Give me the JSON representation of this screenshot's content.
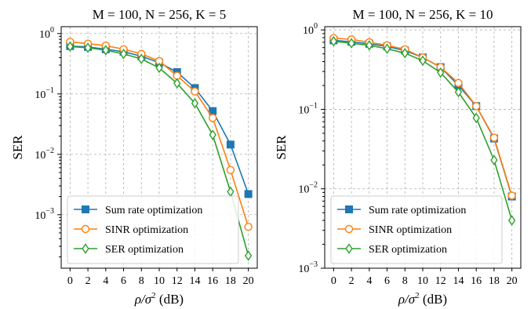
{
  "colors": {
    "sum_rate": "#1f77b4",
    "sinr": "#ff7f0e",
    "ser": "#2ca02c"
  },
  "chart_data": [
    {
      "type": "line",
      "title": "M = 100, N = 256, K = 5",
      "ylabel": "SER",
      "xlabel_main": "ρ/σ",
      "xlabel_sup": "2",
      "xlabel_unit": " (dB)",
      "x": [
        0,
        2,
        4,
        6,
        8,
        10,
        12,
        14,
        16,
        18,
        20
      ],
      "x_ticks": [
        "0",
        "2",
        "4",
        "6",
        "8",
        "10",
        "12",
        "14",
        "16",
        "18",
        "20"
      ],
      "yscale": "log",
      "ylim": [
        0.00013,
        1.3
      ],
      "y_ticks": [
        {
          "value": 1,
          "base": "10",
          "exp": "0"
        },
        {
          "value": 0.1,
          "base": "10",
          "exp": "−1"
        },
        {
          "value": 0.01,
          "base": "10",
          "exp": "−2"
        },
        {
          "value": 0.001,
          "base": "10",
          "exp": "−3"
        }
      ],
      "grid": true,
      "legend_position": "lower-left",
      "series": [
        {
          "name": "Sum rate optimization",
          "marker": "square",
          "color_key": "sum_rate",
          "values": [
            0.62,
            0.6,
            0.55,
            0.5,
            0.42,
            0.33,
            0.23,
            0.125,
            0.052,
            0.0145,
            0.0022
          ]
        },
        {
          "name": "SINR optimization",
          "marker": "circle",
          "color_key": "sinr",
          "values": [
            0.73,
            0.68,
            0.63,
            0.55,
            0.46,
            0.35,
            0.2,
            0.11,
            0.04,
            0.0055,
            0.00063
          ]
        },
        {
          "name": "SER optimization",
          "marker": "diamond",
          "color_key": "ser",
          "values": [
            0.61,
            0.58,
            0.53,
            0.46,
            0.38,
            0.27,
            0.15,
            0.07,
            0.021,
            0.0024,
            0.00021
          ]
        }
      ]
    },
    {
      "type": "line",
      "title": "M = 100, N = 256, K = 10",
      "ylabel": "SER",
      "xlabel_main": "ρ/σ",
      "xlabel_sup": "2",
      "xlabel_unit": " (dB)",
      "x": [
        0,
        2,
        4,
        6,
        8,
        10,
        12,
        14,
        16,
        18,
        20
      ],
      "x_ticks": [
        "0",
        "2",
        "4",
        "6",
        "8",
        "10",
        "12",
        "14",
        "16",
        "18",
        "20"
      ],
      "yscale": "log",
      "ylim": [
        0.001,
        1.1
      ],
      "y_ticks": [
        {
          "value": 1,
          "base": "10",
          "exp": "0"
        },
        {
          "value": 0.1,
          "base": "10",
          "exp": "−1"
        },
        {
          "value": 0.01,
          "base": "10",
          "exp": "−2"
        },
        {
          "value": 0.001,
          "base": "10",
          "exp": "−3"
        }
      ],
      "grid": true,
      "legend_position": "lower-left",
      "series": [
        {
          "name": "Sum rate optimization",
          "marker": "square",
          "color_key": "sum_rate",
          "values": [
            0.74,
            0.71,
            0.67,
            0.62,
            0.55,
            0.45,
            0.34,
            0.2,
            0.11,
            0.043,
            0.008
          ]
        },
        {
          "name": "SINR optimization",
          "marker": "circle",
          "color_key": "sinr",
          "values": [
            0.79,
            0.76,
            0.7,
            0.64,
            0.57,
            0.45,
            0.34,
            0.215,
            0.11,
            0.044,
            0.0082
          ]
        },
        {
          "name": "SER optimization",
          "marker": "diamond",
          "color_key": "ser",
          "values": [
            0.72,
            0.68,
            0.64,
            0.58,
            0.51,
            0.41,
            0.29,
            0.165,
            0.078,
            0.023,
            0.004
          ]
        }
      ]
    }
  ]
}
